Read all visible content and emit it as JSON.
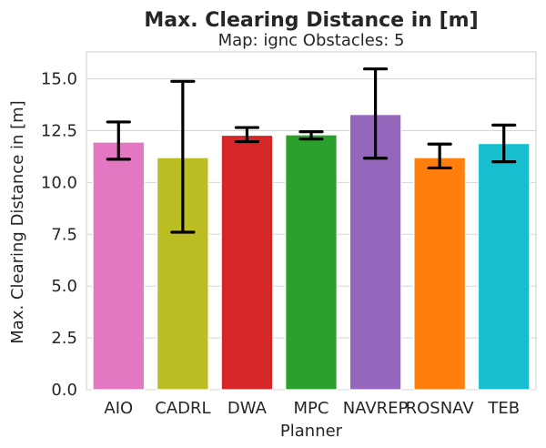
{
  "chart_data": {
    "type": "bar",
    "title": "Max. Clearing Distance in [m]",
    "subtitle": "Map: ignc Obstacles: 5",
    "xlabel": "Planner",
    "ylabel": "Max. Clearing Distance in [m]",
    "ylim": [
      0,
      16.3
    ],
    "yticks": [
      "0.0",
      "2.5",
      "5.0",
      "7.5",
      "10.0",
      "12.5",
      "15.0"
    ],
    "grid": true,
    "legend": "none",
    "categories": [
      "AIO",
      "CADRL",
      "DWA",
      "MPC",
      "NAVREP",
      "ROSNAV",
      "TEB"
    ],
    "values": [
      11.95,
      11.2,
      12.28,
      12.3,
      13.28,
      11.2,
      11.88
    ],
    "error_low": [
      11.12,
      7.6,
      11.97,
      12.1,
      11.17,
      10.7,
      11.0
    ],
    "error_high": [
      12.92,
      14.88,
      12.65,
      12.45,
      15.48,
      11.85,
      12.77
    ],
    "colors": [
      "#e377c2",
      "#bcbd22",
      "#d62728",
      "#2ca02c",
      "#9467bd",
      "#ff7f0e",
      "#17becf"
    ]
  }
}
